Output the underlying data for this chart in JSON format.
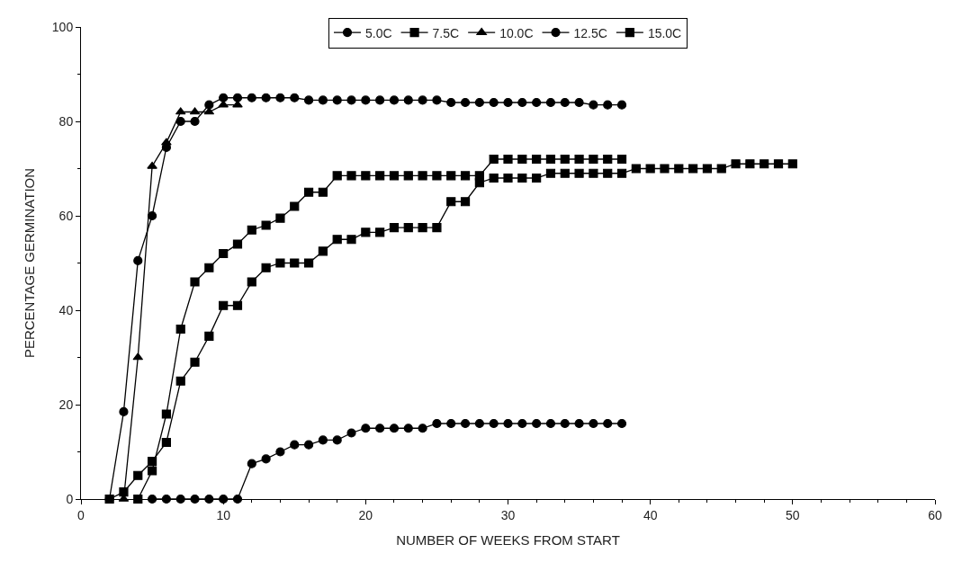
{
  "chart_data": {
    "type": "line",
    "xlabel": "NUMBER OF WEEKS FROM START",
    "ylabel": "PERCENTAGE GERMINATION",
    "xlim": [
      0,
      60
    ],
    "xticks": [
      0,
      10,
      20,
      30,
      40,
      50,
      60
    ],
    "ylim": [
      0,
      100
    ],
    "yticks": [
      0,
      20,
      40,
      60,
      80,
      100
    ],
    "legend": "top",
    "line_style": "solid",
    "series": [
      {
        "name": "5.0C",
        "color": "#000000",
        "marker": "circle",
        "x": [
          5,
          6,
          7,
          8,
          9,
          10,
          11,
          12,
          13,
          14,
          15,
          16,
          17,
          18,
          19,
          20,
          21,
          22,
          23,
          24,
          25,
          26,
          27,
          28,
          29,
          30,
          31,
          32,
          33,
          34,
          35,
          36,
          37,
          38
        ],
        "values": [
          0,
          0,
          0,
          0,
          0,
          0,
          0,
          7.5,
          8.5,
          10,
          11.5,
          11.5,
          12.5,
          12.5,
          14,
          15,
          15,
          15,
          15,
          15,
          16,
          16,
          16,
          16,
          16,
          16,
          16,
          16,
          16,
          16,
          16,
          16,
          16,
          16
        ]
      },
      {
        "name": "7.5C",
        "color": "#000000",
        "marker": "square",
        "x": [
          4,
          5,
          6,
          7,
          8,
          9,
          10,
          11,
          12,
          13,
          14,
          15,
          16,
          17,
          18,
          19,
          20,
          21,
          22,
          23,
          24,
          25,
          26,
          27,
          28,
          29,
          30,
          31,
          32,
          33,
          34,
          35,
          36,
          37,
          38
        ],
        "values": [
          0,
          6,
          18,
          36,
          46,
          49,
          52,
          54,
          57,
          58,
          59.5,
          62,
          65,
          65,
          68.5,
          68.5,
          68.5,
          68.5,
          68.5,
          68.5,
          68.5,
          68.5,
          68.5,
          68.5,
          68.5,
          72,
          72,
          72,
          72,
          72,
          72,
          72,
          72,
          72,
          72
        ]
      },
      {
        "name": "10.0C",
        "color": "#000000",
        "marker": "triangle",
        "x": [
          3,
          4,
          5,
          6,
          7,
          8,
          9,
          10,
          11
        ],
        "values": [
          0,
          30,
          70.5,
          75.5,
          82,
          82,
          82,
          83.5,
          83.5
        ]
      },
      {
        "name": "12.5C",
        "color": "#000000",
        "marker": "circle",
        "x": [
          2,
          3,
          4,
          5,
          6,
          7,
          8,
          9,
          10,
          11,
          12,
          13,
          14,
          15,
          16,
          17,
          18,
          19,
          20,
          21,
          22,
          23,
          24,
          25,
          26,
          27,
          28,
          29,
          30,
          31,
          32,
          33,
          34,
          35,
          36,
          37,
          38
        ],
        "values": [
          0,
          18.5,
          50.5,
          60,
          74.5,
          80,
          80,
          83.5,
          85,
          85,
          85,
          85,
          85,
          85,
          84.5,
          84.5,
          84.5,
          84.5,
          84.5,
          84.5,
          84.5,
          84.5,
          84.5,
          84.5,
          84,
          84,
          84,
          84,
          84,
          84,
          84,
          84,
          84,
          84,
          83.5,
          83.5,
          83.5
        ]
      },
      {
        "name": "15.0C",
        "color": "#000000",
        "marker": "square",
        "x": [
          2,
          3,
          4,
          5,
          6,
          7,
          8,
          9,
          10,
          11,
          12,
          13,
          14,
          15,
          16,
          17,
          18,
          19,
          20,
          21,
          22,
          23,
          24,
          25,
          26,
          27,
          28,
          29,
          30,
          31,
          32,
          33,
          34,
          35,
          36,
          37,
          38,
          39,
          40,
          41,
          42,
          43,
          44,
          45,
          46,
          47,
          48,
          49,
          50
        ],
        "values": [
          0,
          1.5,
          5,
          8,
          12,
          25,
          29,
          34.5,
          41,
          41,
          46,
          49,
          50,
          50,
          50,
          52.5,
          55,
          55,
          56.5,
          56.5,
          57.5,
          57.5,
          57.5,
          57.5,
          63,
          63,
          67,
          68,
          68,
          68,
          68,
          69,
          69,
          69,
          69,
          69,
          69,
          70,
          70,
          70,
          70,
          70,
          70,
          70,
          71,
          71,
          71,
          71,
          71
        ]
      }
    ]
  }
}
